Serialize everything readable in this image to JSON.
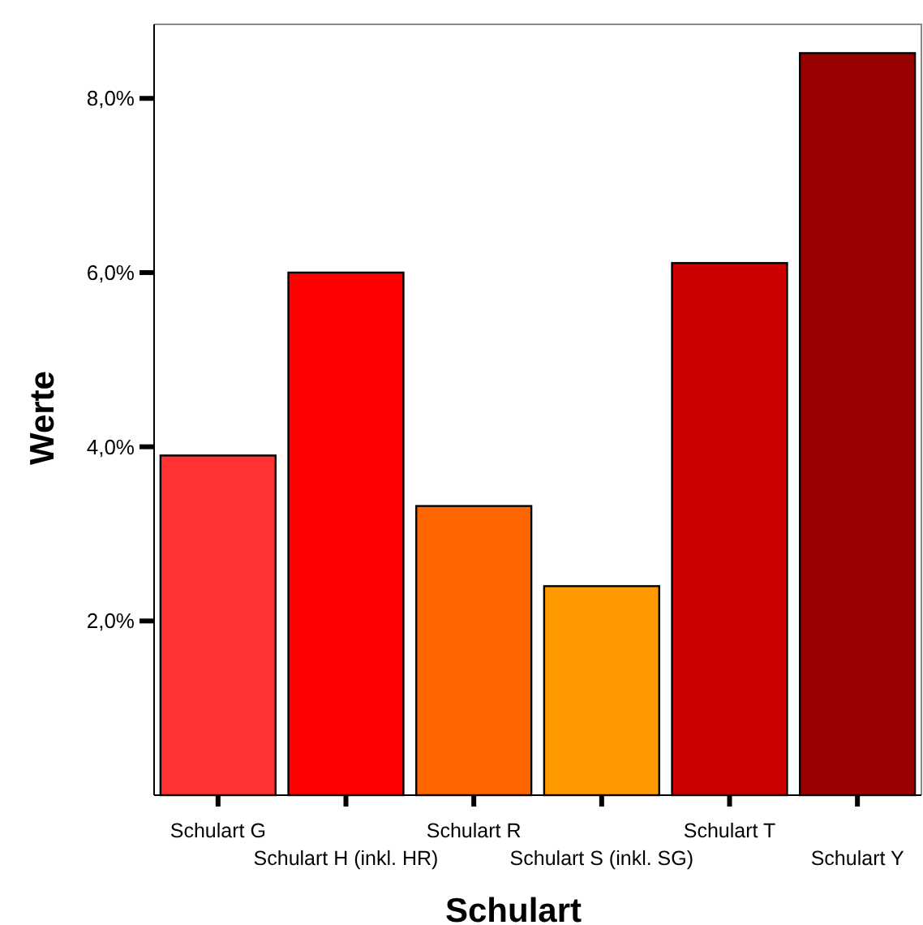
{
  "chart_data": {
    "type": "bar",
    "xlabel": "Schulart",
    "ylabel": "Werte",
    "categories": [
      "Schulart G",
      "Schulart H (inkl. HR)",
      "Schulart R",
      "Schulart S (inkl. SG)",
      "Schulart T",
      "Schulart Y"
    ],
    "values": [
      3.9,
      6.0,
      3.32,
      2.4,
      6.11,
      8.52
    ],
    "colors": [
      "#ff3333",
      "#ff0000",
      "#ff6600",
      "#ff9900",
      "#cc0000",
      "#990000"
    ],
    "ylim": [
      0,
      8.85
    ],
    "yticks": [
      {
        "value": 2,
        "label": "2,0%"
      },
      {
        "value": 4,
        "label": "4,0%"
      },
      {
        "value": 6,
        "label": "6,0%"
      },
      {
        "value": 8,
        "label": "8,0%"
      }
    ]
  }
}
